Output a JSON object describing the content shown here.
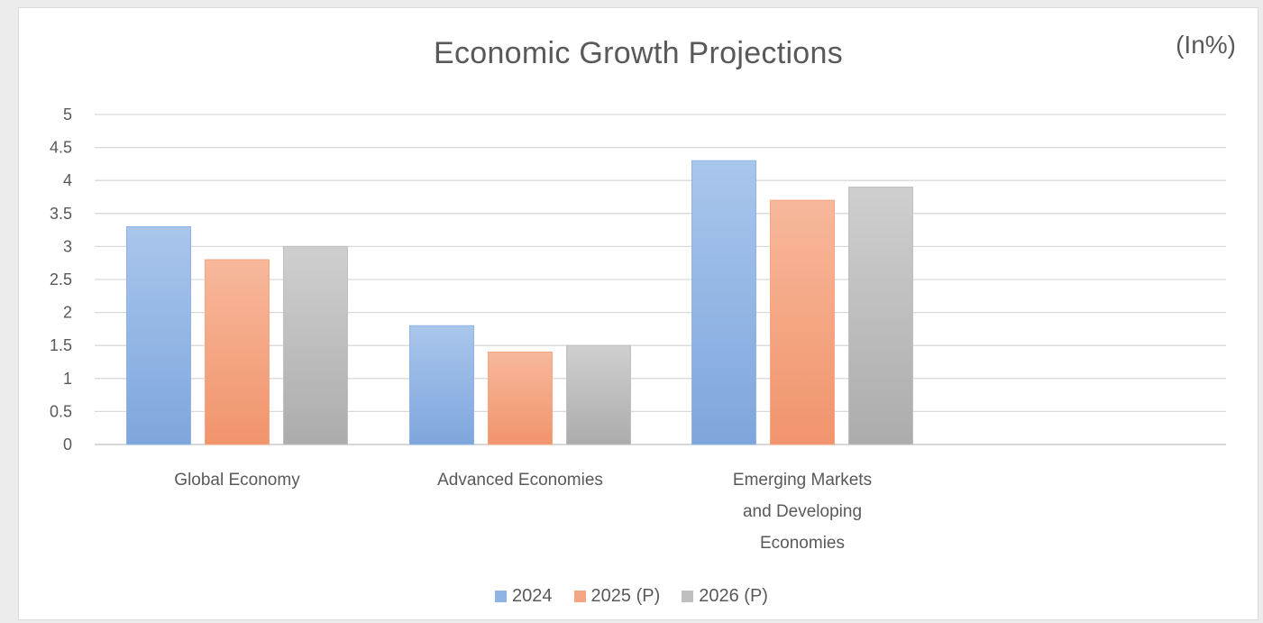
{
  "chart_data": {
    "type": "bar",
    "title": "Economic Growth Projections",
    "unit_label": "(In%)",
    "categories": [
      [
        "Global Economy"
      ],
      [
        "Advanced Economies"
      ],
      [
        "Emerging Markets",
        "and Developing",
        "Economies"
      ]
    ],
    "series": [
      {
        "name": "2024",
        "color": "#8fb4e3",
        "values": [
          3.3,
          1.8,
          4.3
        ]
      },
      {
        "name": "2025 (P)",
        "color": "#f4a582",
        "values": [
          2.8,
          1.4,
          3.7
        ]
      },
      {
        "name": "2026 (P)",
        "color": "#bfbfbf",
        "values": [
          3.0,
          1.5,
          3.9
        ]
      }
    ],
    "ylim": [
      0,
      5
    ],
    "yticks": [
      "0",
      "0.5",
      "1",
      "1.5",
      "2",
      "2.5",
      "3",
      "3.5",
      "4",
      "4.5",
      "5"
    ],
    "grid": true,
    "legend_position": "bottom"
  }
}
